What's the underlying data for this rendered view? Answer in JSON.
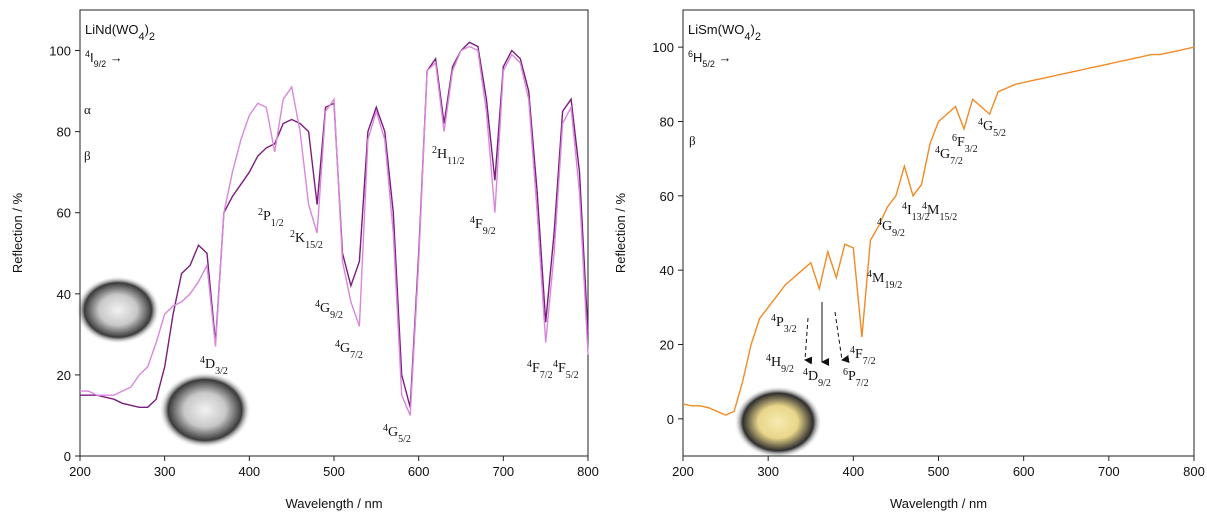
{
  "chart_data": [
    {
      "type": "line",
      "title": [
        {
          "text": "LiNd(WO"
        },
        {
          "sub": "4"
        },
        {
          "text": ")"
        },
        {
          "sub": "2"
        }
      ],
      "transition_label": [
        {
          "sup": "4"
        },
        {
          "text": "I"
        },
        {
          "sub": "9/2"
        },
        {
          "text": " →"
        }
      ],
      "xlabel": "Wavelength / nm",
      "ylabel": "Reflection / %",
      "xlim": [
        200,
        800
      ],
      "xticks": [
        200,
        300,
        400,
        500,
        600,
        700,
        800
      ],
      "ylim": [
        0,
        110
      ],
      "yticks": [
        0,
        20,
        40,
        60,
        80,
        100
      ],
      "x": [
        200,
        210,
        220,
        230,
        240,
        250,
        260,
        270,
        280,
        290,
        300,
        310,
        320,
        330,
        340,
        350,
        360,
        370,
        380,
        390,
        400,
        410,
        420,
        430,
        440,
        450,
        460,
        470,
        480,
        490,
        500,
        510,
        520,
        530,
        540,
        550,
        560,
        570,
        580,
        590,
        600,
        610,
        620,
        630,
        640,
        650,
        660,
        670,
        680,
        690,
        700,
        710,
        720,
        730,
        740,
        750,
        760,
        770,
        780,
        790,
        800
      ],
      "series": [
        {
          "name": "α",
          "color": "#7b1d7e",
          "values": [
            15,
            15,
            15,
            14.5,
            14,
            13,
            12.5,
            12,
            12,
            14,
            22,
            35,
            45,
            47,
            52,
            50,
            28,
            60,
            64,
            67,
            70,
            74,
            76,
            77,
            82,
            83,
            82,
            80,
            62,
            86,
            87,
            50,
            42,
            48,
            80,
            86,
            80,
            60,
            20,
            12,
            50,
            95,
            98,
            82,
            96,
            100,
            102,
            101,
            88,
            68,
            96,
            100,
            98,
            90,
            65,
            33,
            55,
            85,
            88,
            70,
            30
          ]
        },
        {
          "name": "β",
          "color": "#d987dc",
          "values": [
            16,
            16,
            15,
            15,
            15,
            16,
            17,
            20,
            22,
            28,
            35,
            37,
            38,
            40,
            43,
            47,
            27,
            60,
            70,
            78,
            84,
            87,
            86,
            75,
            88,
            91,
            80,
            62,
            55,
            85,
            88,
            48,
            38,
            32,
            78,
            85,
            78,
            55,
            15,
            10,
            48,
            95,
            97,
            80,
            95,
            100,
            101,
            100,
            85,
            60,
            95,
            99,
            97,
            88,
            60,
            28,
            50,
            82,
            86,
            65,
            25
          ]
        }
      ],
      "annotations": [
        [
          {
            "sup": "4"
          },
          {
            "text": "D"
          },
          {
            "sub": "3/2"
          }
        ],
        [
          {
            "sup": "2"
          },
          {
            "text": "P"
          },
          {
            "sub": "1/2"
          }
        ],
        [
          {
            "sup": "2"
          },
          {
            "text": "K"
          },
          {
            "sub": "15/2"
          }
        ],
        [
          {
            "sup": "4"
          },
          {
            "text": "G"
          },
          {
            "sub": "9/2"
          }
        ],
        [
          {
            "sup": "4"
          },
          {
            "text": "G"
          },
          {
            "sub": "7/2"
          }
        ],
        [
          {
            "sup": "4"
          },
          {
            "text": "G"
          },
          {
            "sub": "5/2"
          }
        ],
        [
          {
            "sup": "2"
          },
          {
            "text": "H"
          },
          {
            "sub": "11/2"
          }
        ],
        [
          {
            "sup": "4"
          },
          {
            "text": "F"
          },
          {
            "sub": "9/2"
          }
        ],
        [
          {
            "sup": "4"
          },
          {
            "text": "F"
          },
          {
            "sub": "7/2"
          }
        ],
        [
          {
            "sup": "4"
          },
          {
            "text": "F"
          },
          {
            "sub": "5/2"
          }
        ]
      ]
    },
    {
      "type": "line",
      "title": [
        {
          "text": "LiSm(WO"
        },
        {
          "sub": "4"
        },
        {
          "text": ")"
        },
        {
          "sub": "2"
        }
      ],
      "transition_label": [
        {
          "sup": "6"
        },
        {
          "text": "H"
        },
        {
          "sub": "5/2"
        },
        {
          "text": " →"
        }
      ],
      "xlabel": "Wavelength / nm",
      "ylabel": "Reflection / %",
      "xlim": [
        200,
        800
      ],
      "xticks": [
        200,
        300,
        400,
        500,
        600,
        700,
        800
      ],
      "ylim": [
        -10,
        110
      ],
      "yticks": [
        0,
        20,
        40,
        60,
        80,
        100
      ],
      "x": [
        200,
        210,
        220,
        230,
        240,
        250,
        260,
        270,
        280,
        290,
        300,
        310,
        320,
        330,
        340,
        350,
        360,
        370,
        380,
        390,
        400,
        410,
        420,
        430,
        440,
        450,
        460,
        470,
        480,
        490,
        500,
        510,
        520,
        530,
        540,
        550,
        560,
        570,
        580,
        590,
        600,
        610,
        620,
        630,
        640,
        650,
        660,
        670,
        680,
        690,
        700,
        710,
        720,
        730,
        740,
        750,
        760,
        770,
        780,
        790,
        800
      ],
      "series": [
        {
          "name": "β",
          "color": "#f28a24",
          "values": [
            4,
            3.5,
            3.5,
            3,
            2,
            1,
            2,
            10,
            20,
            27,
            30,
            33,
            36,
            38,
            40,
            42,
            35,
            45,
            38,
            47,
            46,
            22,
            48,
            52,
            57,
            60,
            68,
            60,
            63,
            74,
            80,
            82,
            84,
            78,
            86,
            84,
            82,
            88,
            89,
            90,
            90.5,
            91,
            91.5,
            92,
            92.5,
            93,
            93.5,
            94,
            94.5,
            95,
            95.5,
            96,
            96.5,
            97,
            97.5,
            98,
            98,
            98.5,
            99,
            99.5,
            100
          ]
        }
      ],
      "annotations": [
        [
          {
            "sup": "4"
          },
          {
            "text": "P"
          },
          {
            "sub": "3/2"
          }
        ],
        [
          {
            "sup": "4"
          },
          {
            "text": "H"
          },
          {
            "sub": "9/2"
          }
        ],
        [
          {
            "sup": "4"
          },
          {
            "text": "D"
          },
          {
            "sub": "9/2"
          }
        ],
        [
          {
            "sup": "6"
          },
          {
            "text": "P"
          },
          {
            "sub": "7/2"
          }
        ],
        [
          {
            "sup": "4"
          },
          {
            "text": "F"
          },
          {
            "sub": "7/2"
          }
        ],
        [
          {
            "sup": "4"
          },
          {
            "text": "M"
          },
          {
            "sub": "19/2"
          }
        ],
        [
          {
            "sup": "4"
          },
          {
            "text": "G"
          },
          {
            "sub": "9/2"
          }
        ],
        [
          {
            "sup": "4"
          },
          {
            "text": "I"
          },
          {
            "sub": "13/2"
          }
        ],
        [
          {
            "sup": "4"
          },
          {
            "text": "M"
          },
          {
            "sub": "15/2"
          }
        ],
        [
          {
            "sup": "4"
          },
          {
            "text": "G"
          },
          {
            "sub": "7/2"
          }
        ],
        [
          {
            "sup": "6"
          },
          {
            "text": "F"
          },
          {
            "sub": "3/2"
          }
        ],
        [
          {
            "sup": "4"
          },
          {
            "text": "G"
          },
          {
            "sub": "5/2"
          }
        ]
      ]
    }
  ]
}
